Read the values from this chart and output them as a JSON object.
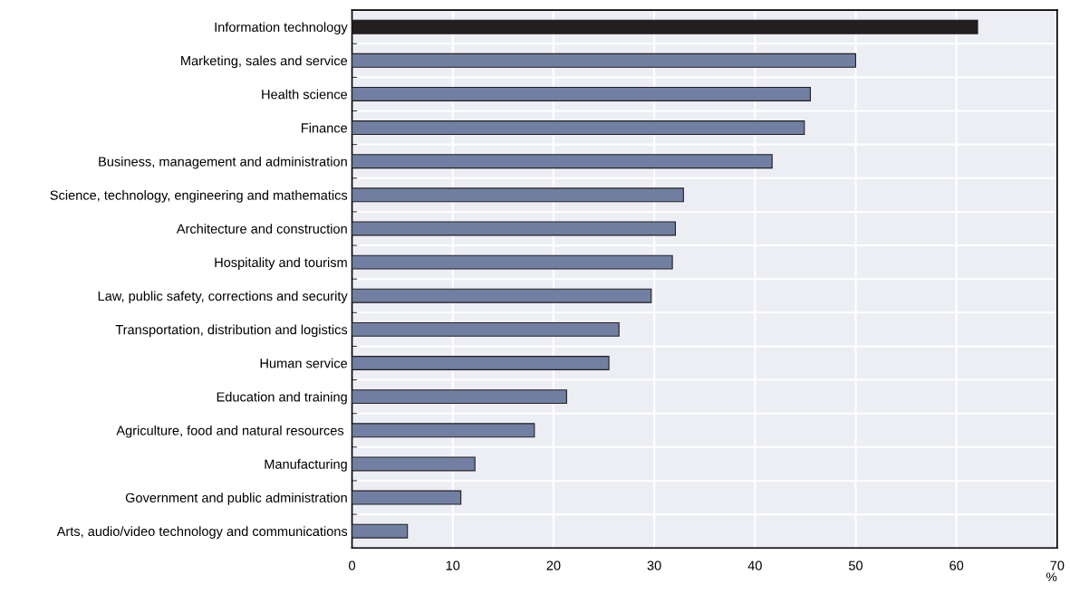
{
  "chart_data": {
    "type": "bar",
    "orientation": "horizontal",
    "xlabel": "%",
    "categories": [
      "Information technology",
      "Marketing, sales and service",
      "Health science",
      "Finance",
      "Business, management and administration",
      "Science, technology, engineering and mathematics",
      "Architecture and construction",
      "Hospitality and tourism",
      "Law, public safety, corrections and security",
      "Transportation, distribution and logistics",
      "Human service",
      "Education and training",
      "Agriculture, food and natural resources ",
      "Manufacturing",
      "Government and public administration",
      "Arts, audio/video technology and communications"
    ],
    "values": [
      62.1,
      50.0,
      45.5,
      44.9,
      41.7,
      32.9,
      32.1,
      31.8,
      29.7,
      26.5,
      25.5,
      21.3,
      18.1,
      12.2,
      10.8,
      5.5
    ],
    "colors": [
      "#231f20",
      "#7180a2",
      "#7180a2",
      "#7180a2",
      "#7180a2",
      "#7180a2",
      "#7180a2",
      "#7180a2",
      "#7180a2",
      "#7180a2",
      "#7180a2",
      "#7180a2",
      "#7180a2",
      "#7180a2",
      "#7180a2",
      "#7180a2"
    ],
    "xlim": [
      0,
      70
    ],
    "xticks": [
      0,
      10,
      20,
      30,
      40,
      50,
      60,
      70
    ],
    "grid": true
  }
}
